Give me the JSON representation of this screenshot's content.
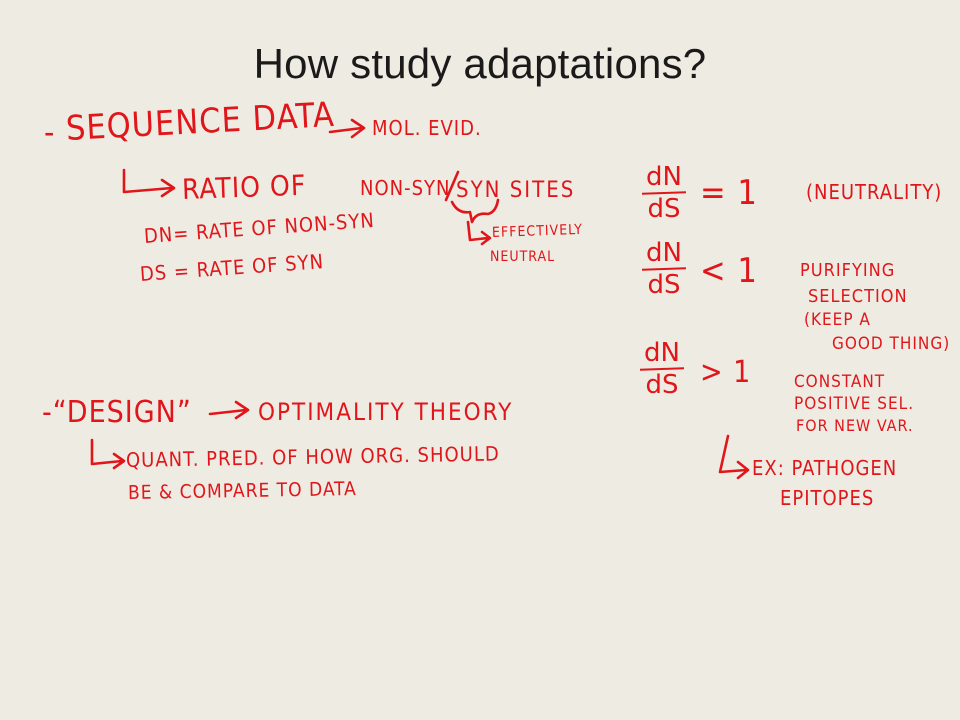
{
  "slide": {
    "title": "How study adaptations?"
  },
  "notes": {
    "seq_dash": "-",
    "seq_text": "Sequence Data",
    "mol_evid": "Mol. Evid.",
    "ratio": "Ratio of",
    "non_syn": "Non-Syn",
    "syn_sites": "Syn sites",
    "dn_def": "dN= Rate of Non-Syn",
    "ds_def": "dS = Rate of Syn",
    "effectively": "Effectively",
    "neutral": "Neutral",
    "design": "-“Design”",
    "optimality": "Optimality Theory",
    "quant": "Quant. Pred. of how Org. should",
    "be_compare": "Be & Compare to Data",
    "ratio_num": "dN",
    "ratio_den": "dS",
    "eq_sign": "= 1",
    "lt_sign": "< 1",
    "gt_sign": "> 1",
    "neutrality": "(Neutrality)",
    "purifying": "Purifying",
    "selection": "Selection",
    "keep_a": "(Keep a",
    "good_thing": "Good thing)",
    "constant": "Constant",
    "positive_sel": "Positive Sel.",
    "for_new_var": "For new var.",
    "ex_pathogen": "Ex: Pathogen",
    "epitopes": "Epitopes"
  },
  "colors": {
    "background": "#eeebe2",
    "ink": "#e0161b",
    "title": "#1a1a1a"
  }
}
